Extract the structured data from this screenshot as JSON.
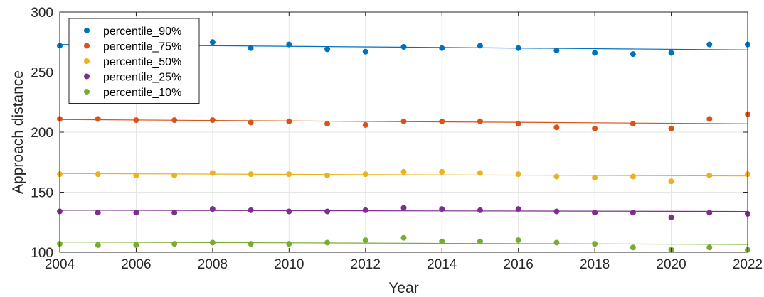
{
  "chart_data": {
    "type": "scatter",
    "xlabel": "Year",
    "ylabel": "Approach distance",
    "xlim": [
      2004,
      2022
    ],
    "ylim": [
      100,
      300
    ],
    "xticks": [
      "2004",
      "2006",
      "2008",
      "2010",
      "2012",
      "2014",
      "2016",
      "2018",
      "2020",
      "2022"
    ],
    "yticks": [
      "100",
      "150",
      "200",
      "250",
      "300"
    ],
    "grid": true,
    "legend_position": "top-left",
    "x": [
      2004,
      2005,
      2006,
      2007,
      2008,
      2009,
      2010,
      2011,
      2012,
      2013,
      2014,
      2015,
      2016,
      2017,
      2018,
      2019,
      2020,
      2021,
      2022
    ],
    "series": [
      {
        "name": "percentile_90%",
        "color": "#0072BD",
        "values": [
          272,
          276,
          271,
          270,
          275,
          270,
          273,
          269,
          267,
          271,
          270,
          272,
          270,
          268,
          266,
          265,
          266,
          273,
          273
        ],
        "trend": [
          273,
          268.5
        ]
      },
      {
        "name": "percentile_75%",
        "color": "#D95319",
        "values": [
          211,
          211,
          210,
          210,
          210,
          208,
          209,
          207,
          206,
          209,
          209,
          209,
          207,
          204,
          203,
          207,
          203,
          211,
          215
        ],
        "trend": [
          210.5,
          207
        ]
      },
      {
        "name": "percentile_50%",
        "color": "#EDB120",
        "values": [
          165,
          165,
          164,
          164,
          166,
          165,
          165,
          164,
          165,
          167,
          167,
          166,
          165,
          163,
          162,
          163,
          159,
          164,
          165
        ],
        "trend": [
          165.5,
          163.5
        ]
      },
      {
        "name": "percentile_25%",
        "color": "#7E2F8E",
        "values": [
          134,
          133,
          133,
          133,
          136,
          135,
          134,
          134,
          135,
          137,
          136,
          135,
          136,
          134,
          133,
          133,
          129,
          133,
          132
        ],
        "trend": [
          135,
          134
        ]
      },
      {
        "name": "percentile_10%",
        "color": "#77AC30",
        "values": [
          107,
          106,
          106,
          107,
          108,
          107,
          107,
          108,
          110,
          112,
          109,
          109,
          110,
          108,
          107,
          104,
          102,
          104,
          102
        ],
        "trend": [
          108.5,
          106.5
        ]
      }
    ]
  }
}
